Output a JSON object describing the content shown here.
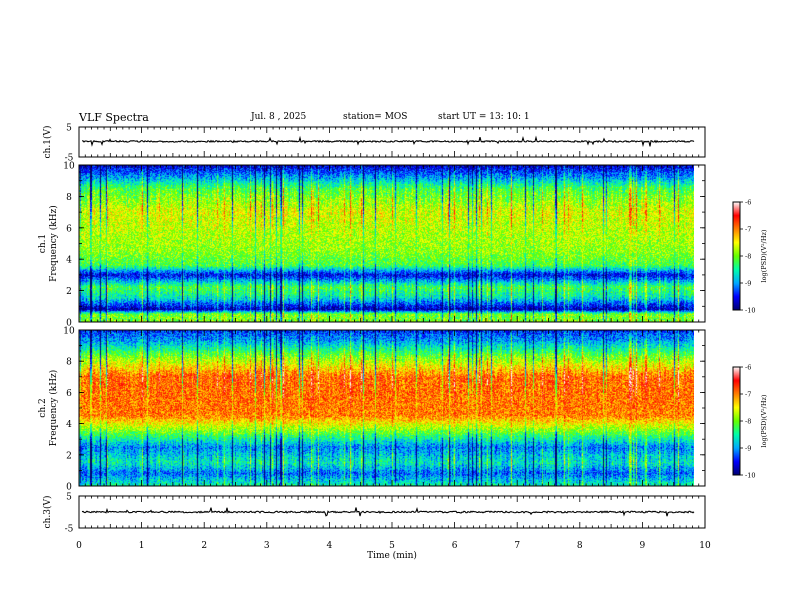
{
  "chart_data": {
    "type": "heatmap",
    "title": "VLF Spectra",
    "header": {
      "date": "Jul. 8 , 2025",
      "station": "station= MOS",
      "start": "start UT = 13: 10: 1"
    },
    "xlabel": "Time (min)",
    "xlim": [
      0,
      10
    ],
    "xticks": [
      "0",
      "1",
      "2",
      "3",
      "4",
      "5",
      "6",
      "7",
      "8",
      "9",
      "10"
    ],
    "data_end_min": 9.83,
    "panels": [
      {
        "id": "ch1-voltage",
        "type": "line",
        "ylabel": "ch.1(V)",
        "ylim": [
          -5,
          5
        ],
        "yticks": [
          "5",
          "-5"
        ],
        "level": 0.2
      },
      {
        "id": "ch1-spectrogram",
        "type": "heatmap",
        "ylabel_top": "ch.1",
        "ylabel": "Frequency (kHz)",
        "ylim": [
          0,
          10
        ],
        "yticks": [
          "0",
          "2",
          "4",
          "6",
          "8",
          "10"
        ],
        "profile_log_psd": [
          {
            "khz": 0.0,
            "v": -8.0
          },
          {
            "khz": 0.5,
            "v": -8.0
          },
          {
            "khz": 0.8,
            "v": -9.8
          },
          {
            "khz": 1.6,
            "v": -8.6
          },
          {
            "khz": 2.2,
            "v": -8.2
          },
          {
            "khz": 3.0,
            "v": -9.6
          },
          {
            "khz": 3.6,
            "v": -8.2
          },
          {
            "khz": 4.5,
            "v": -7.9
          },
          {
            "khz": 7.0,
            "v": -7.6
          },
          {
            "khz": 8.5,
            "v": -8.2
          },
          {
            "khz": 9.2,
            "v": -9.0
          },
          {
            "khz": 10.0,
            "v": -9.7
          }
        ]
      },
      {
        "id": "ch2-spectrogram",
        "type": "heatmap",
        "ylabel_top": "ch.2",
        "ylabel": "Frequency (kHz)",
        "ylim": [
          0,
          10
        ],
        "yticks": [
          "0",
          "2",
          "4",
          "6",
          "8",
          "10"
        ],
        "profile_log_psd": [
          {
            "khz": 0.0,
            "v": -8.5
          },
          {
            "khz": 0.8,
            "v": -9.2
          },
          {
            "khz": 1.5,
            "v": -8.6
          },
          {
            "khz": 2.5,
            "v": -9.1
          },
          {
            "khz": 3.5,
            "v": -8.0
          },
          {
            "khz": 4.5,
            "v": -7.0
          },
          {
            "khz": 7.0,
            "v": -6.9
          },
          {
            "khz": 8.3,
            "v": -8.0
          },
          {
            "khz": 9.3,
            "v": -9.0
          },
          {
            "khz": 10.0,
            "v": -9.4
          }
        ]
      },
      {
        "id": "ch3-voltage",
        "type": "line",
        "ylabel": "ch.3(V)",
        "ylim": [
          -5,
          5
        ],
        "yticks": [
          "5",
          "-5"
        ],
        "level": 0.0
      }
    ],
    "colorbar": {
      "label": "log(PSD)(V²/Hz)",
      "range": [
        -10,
        -6
      ],
      "ticks": [
        "-6",
        "-7",
        "-8",
        "-9",
        "-10"
      ],
      "stops": [
        "#000070",
        "#0000ff",
        "#00aaff",
        "#00ffaa",
        "#66ff00",
        "#ffff00",
        "#ff8000",
        "#ff0000",
        "#ffffff"
      ]
    }
  }
}
